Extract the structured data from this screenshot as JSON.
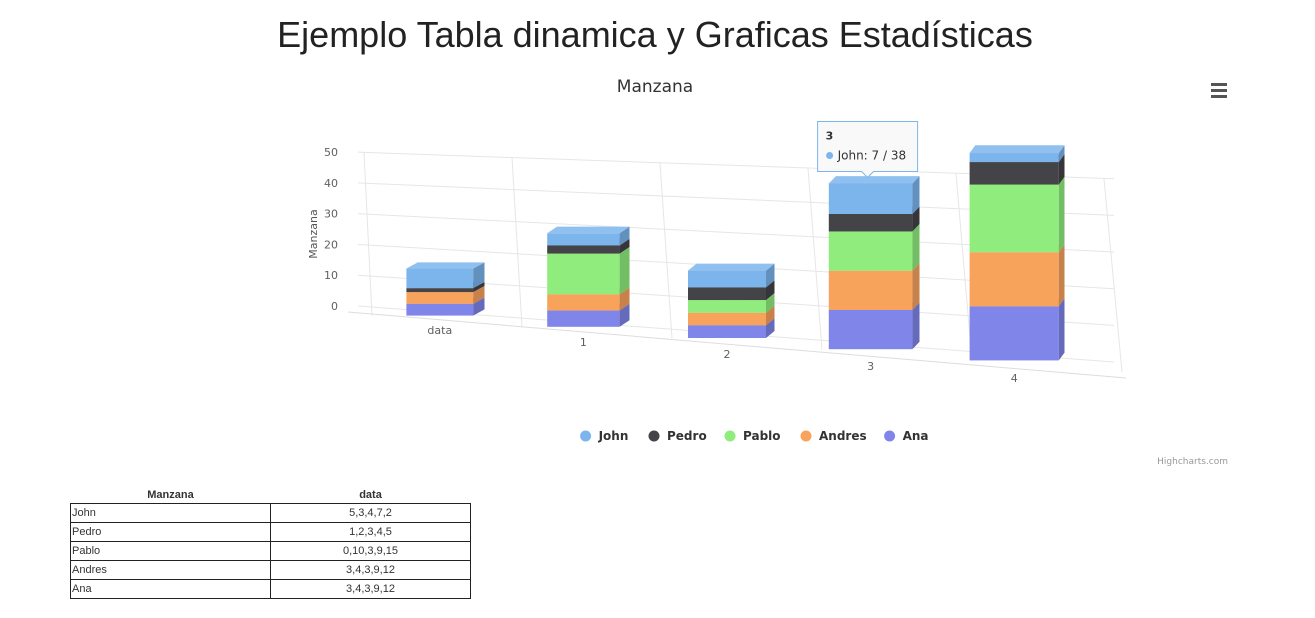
{
  "page": {
    "title": "Ejemplo Tabla dinamica y Graficas Estadísticas"
  },
  "menu": {
    "icon": "hamburger-menu-icon"
  },
  "chart_data": {
    "type": "bar",
    "variant": "stacked-3d-column",
    "title": "Manzana",
    "ylabel": "Manzana",
    "xlabel": "",
    "categories": [
      "data",
      "1",
      "2",
      "3",
      "4"
    ],
    "ylim": [
      0,
      50
    ],
    "yticks": [
      0,
      10,
      20,
      30,
      40,
      50
    ],
    "grid": true,
    "legend_position": "bottom-center",
    "series": [
      {
        "name": "John",
        "values": [
          5,
          3,
          4,
          7,
          2
        ],
        "color": "#7cb5ec"
      },
      {
        "name": "Pedro",
        "values": [
          1,
          2,
          3,
          4,
          5
        ],
        "color": "#434348"
      },
      {
        "name": "Pablo",
        "values": [
          0,
          10,
          3,
          9,
          15
        ],
        "color": "#90ed7d"
      },
      {
        "name": "Andres",
        "values": [
          3,
          4,
          3,
          9,
          12
        ],
        "color": "#f7a35c"
      },
      {
        "name": "Ana",
        "values": [
          3,
          4,
          3,
          9,
          12
        ],
        "color": "#8085e9"
      }
    ],
    "tooltip": {
      "category": "3",
      "series": "John",
      "text": "John: 7 / 38"
    },
    "credits": "Highcharts.com"
  },
  "table": {
    "headers": [
      "Manzana",
      "data"
    ],
    "rows": [
      [
        "John",
        "5,3,4,7,2"
      ],
      [
        "Pedro",
        "1,2,3,4,5"
      ],
      [
        "Pablo",
        "0,10,3,9,15"
      ],
      [
        "Andres",
        "3,4,3,9,12"
      ],
      [
        "Ana",
        "3,4,3,9,12"
      ]
    ]
  }
}
